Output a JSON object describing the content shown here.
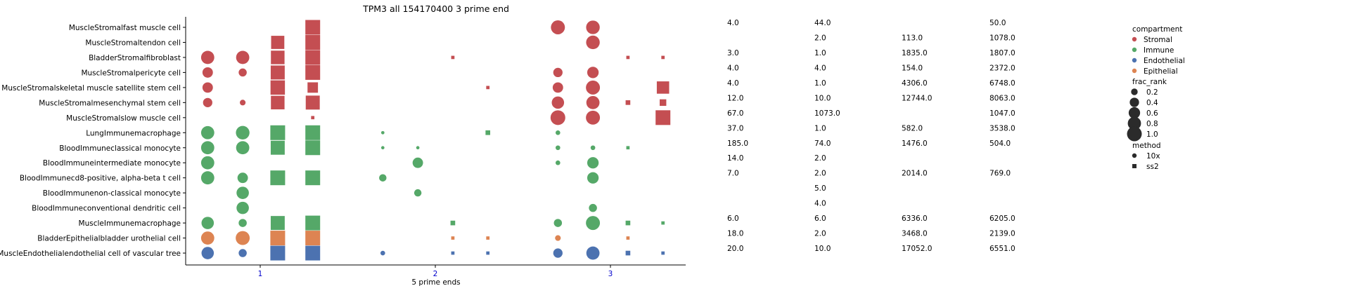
{
  "chart_data": {
    "type": "scatter",
    "title": "TPM3 all 154170400 3 prime end",
    "xlabel": "5 prime ends",
    "x_ticks": [
      "1",
      "2",
      "3"
    ],
    "grid": false,
    "legend_placement": "right",
    "rows": [
      "MuscleStromalfast muscle cell",
      "MuscleStromaltendon cell",
      "BladderStromalfibroblast",
      "MuscleStromalpericyte cell",
      "MuscleStromalskeletal muscle satellite stem cell",
      "MuscleStromalmesenchymal stem cell",
      "MuscleStromalslow muscle cell",
      "LungImmunemacrophage",
      "BloodImmuneclassical monocyte",
      "BloodImmuneintermediate monocyte",
      "BloodImmunecd8-positive, alpha-beta t cell",
      "BloodImmunenon-classical monocyte",
      "BloodImmuneconventional dendritic cell",
      "MuscleImmunemacrophage",
      "BladderEpithelialbladder urothelial cell",
      "MuscleEndothelialendothelial cell of vascular tree"
    ],
    "row_compartment": [
      "Stromal",
      "Stromal",
      "Stromal",
      "Stromal",
      "Stromal",
      "Stromal",
      "Stromal",
      "Immune",
      "Immune",
      "Immune",
      "Immune",
      "Immune",
      "Immune",
      "Immune",
      "Epithelial",
      "Endothelial"
    ],
    "compartment_colors": {
      "Stromal": "#c44e52",
      "Immune": "#55a868",
      "Endothelial": "#4c72b0",
      "Epithelial": "#dd8452"
    },
    "column_positions": [
      0.7,
      0.9,
      1.1,
      1.3,
      1.7,
      1.9,
      2.1,
      2.3,
      2.7,
      2.9,
      3.1,
      3.3
    ],
    "column_methods": [
      "10x",
      "10x",
      "ss2",
      "ss2",
      "10x",
      "10x",
      "ss2",
      "ss2",
      "10x",
      "10x",
      "ss2",
      "ss2"
    ],
    "frac_rank": [
      [
        0,
        0,
        0,
        1.0,
        0,
        0,
        0,
        0,
        0.9,
        0.85,
        0,
        0
      ],
      [
        0,
        0,
        0.8,
        1.0,
        0,
        0,
        0,
        0,
        0,
        0.85,
        0,
        0
      ],
      [
        0.8,
        0.8,
        0.85,
        1.0,
        0,
        0,
        0.05,
        0,
        0,
        0,
        0.05,
        0.05
      ],
      [
        0.5,
        0.3,
        0.9,
        1.0,
        0,
        0,
        0,
        0,
        0.4,
        0.6,
        0,
        0
      ],
      [
        0.5,
        0,
        0.95,
        0.5,
        0,
        0,
        0,
        0.05,
        0.5,
        0.9,
        0,
        0.7
      ],
      [
        0.4,
        0.15,
        0.85,
        0.9,
        0,
        0,
        0,
        0,
        0.7,
        0.8,
        0.1,
        0.2
      ],
      [
        0,
        0,
        0,
        0.05,
        0,
        0,
        0,
        0,
        1.0,
        0.9,
        0,
        1.0
      ],
      [
        0.8,
        0.85,
        1.0,
        1.0,
        0.05,
        0,
        0,
        0.1,
        0.1,
        0,
        0,
        0
      ],
      [
        0.8,
        0.8,
        0.9,
        1.0,
        0.05,
        0.05,
        0,
        0,
        0.1,
        0.1,
        0.05,
        0
      ],
      [
        0.8,
        0,
        0,
        0,
        0,
        0.5,
        0,
        0,
        0.1,
        0.6,
        0,
        0
      ],
      [
        0.8,
        0.5,
        1.0,
        1.0,
        0.25,
        0,
        0,
        0,
        0,
        0.6,
        0,
        0
      ],
      [
        0,
        0.7,
        0,
        0,
        0,
        0.25,
        0,
        0,
        0,
        0,
        0,
        0
      ],
      [
        0,
        0.7,
        0,
        0,
        0,
        0,
        0,
        0,
        0,
        0.3,
        0,
        0
      ],
      [
        0.7,
        0.3,
        0.9,
        1.0,
        0,
        0,
        0.1,
        0,
        0.3,
        0.9,
        0.1,
        0.05
      ],
      [
        0.8,
        0.9,
        1.0,
        1.0,
        0,
        0,
        0.05,
        0.05,
        0.15,
        0,
        0.05,
        0
      ],
      [
        0.7,
        0.3,
        1.0,
        1.0,
        0.1,
        0,
        0.05,
        0.05,
        0.4,
        0.8,
        0.1,
        0.05
      ]
    ],
    "table": {
      "columns": 4,
      "rows": [
        [
          "4.0",
          "44.0",
          "",
          "50.0"
        ],
        [
          "",
          "2.0",
          "113.0",
          "1078.0"
        ],
        [
          "3.0",
          "1.0",
          "1835.0",
          "1807.0"
        ],
        [
          "4.0",
          "4.0",
          "154.0",
          "2372.0"
        ],
        [
          "4.0",
          "1.0",
          "4306.0",
          "6748.0"
        ],
        [
          "12.0",
          "10.0",
          "12744.0",
          "8063.0"
        ],
        [
          "67.0",
          "1073.0",
          "",
          "1047.0"
        ],
        [
          "37.0",
          "1.0",
          "582.0",
          "3538.0"
        ],
        [
          "185.0",
          "74.0",
          "1476.0",
          "504.0"
        ],
        [
          "14.0",
          "2.0",
          "",
          ""
        ],
        [
          "7.0",
          "2.0",
          "2014.0",
          "769.0"
        ],
        [
          "",
          "5.0",
          "",
          ""
        ],
        [
          "",
          "4.0",
          "",
          ""
        ],
        [
          "6.0",
          "6.0",
          "6336.0",
          "6205.0"
        ],
        [
          "18.0",
          "2.0",
          "3468.0",
          "2139.0"
        ],
        [
          "20.0",
          "10.0",
          "17052.0",
          "6551.0"
        ]
      ]
    },
    "legend": {
      "compartment_title": "compartment",
      "compartments": [
        "Stromal",
        "Immune",
        "Endothelial",
        "Epithelial"
      ],
      "frac_rank_title": "frac_rank",
      "frac_rank_values": [
        "0.2",
        "0.4",
        "0.6",
        "0.8",
        "1.0"
      ],
      "method_title": "method",
      "methods": [
        "10x",
        "ss2"
      ],
      "neutral_color": "#2b2b2b"
    }
  }
}
